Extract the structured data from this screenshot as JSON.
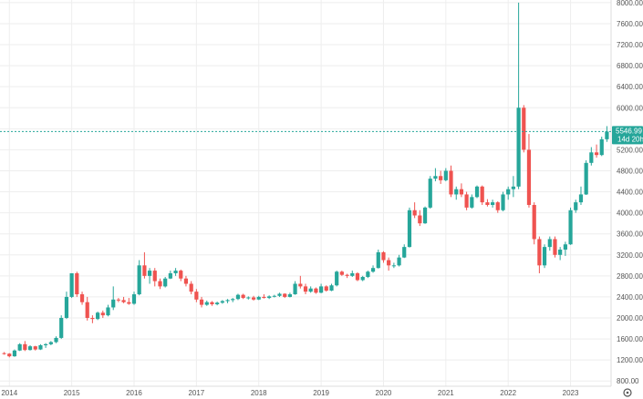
{
  "chart_data": {
    "type": "candlestick",
    "title": "",
    "xlabel": "",
    "ylabel": "",
    "ylim": [
      700,
      8050
    ],
    "xlim": [
      2013.85,
      2023.65
    ],
    "grid": true,
    "legend": "none",
    "colors": {
      "up": "#26a69a",
      "down": "#ef5350",
      "last_price_line": "#26a69a",
      "grid": "#eeeeee",
      "axis": "#dddddd"
    },
    "x_ticks": [
      {
        "t": 2014,
        "label": "2014"
      },
      {
        "t": 2015,
        "label": "2015"
      },
      {
        "t": 2016,
        "label": "2016"
      },
      {
        "t": 2017,
        "label": "2017"
      },
      {
        "t": 2018,
        "label": "2018"
      },
      {
        "t": 2019,
        "label": "2019"
      },
      {
        "t": 2020,
        "label": "2020"
      },
      {
        "t": 2021,
        "label": "2021"
      },
      {
        "t": 2022,
        "label": "2022"
      },
      {
        "t": 2023,
        "label": "2023"
      }
    ],
    "y_ticks": [
      {
        "v": 800,
        "label": "800.00"
      },
      {
        "v": 1200,
        "label": "1200.00"
      },
      {
        "v": 1600,
        "label": "1600.00"
      },
      {
        "v": 2000,
        "label": "2000.00"
      },
      {
        "v": 2400,
        "label": "2400.00"
      },
      {
        "v": 2800,
        "label": "2800.00"
      },
      {
        "v": 3200,
        "label": "3200.00"
      },
      {
        "v": 3600,
        "label": "3600.00"
      },
      {
        "v": 4000,
        "label": "4000.00"
      },
      {
        "v": 4400,
        "label": "4400.00"
      },
      {
        "v": 4800,
        "label": "4800.00"
      },
      {
        "v": 5200,
        "label": "5200.00"
      },
      {
        "v": 5600,
        "label": "5600.00"
      },
      {
        "v": 6000,
        "label": "6000.00"
      },
      {
        "v": 6400,
        "label": "6400.00"
      },
      {
        "v": 6800,
        "label": "6800.00"
      },
      {
        "v": 7200,
        "label": "7200.00"
      },
      {
        "v": 7600,
        "label": "7600.00"
      },
      {
        "v": 8000,
        "label": "8000.00"
      }
    ],
    "last_price": 5546.99,
    "last_price_label": "5546.99",
    "countdown_label": "14d 20h",
    "candles": [
      {
        "t": 2013.917,
        "o": 1330,
        "h": 1350,
        "l": 1300,
        "c": 1320
      },
      {
        "t": 2014.0,
        "o": 1320,
        "h": 1330,
        "l": 1250,
        "c": 1270
      },
      {
        "t": 2014.083,
        "o": 1270,
        "h": 1400,
        "l": 1260,
        "c": 1380
      },
      {
        "t": 2014.167,
        "o": 1380,
        "h": 1520,
        "l": 1370,
        "c": 1500
      },
      {
        "t": 2014.25,
        "o": 1500,
        "h": 1560,
        "l": 1370,
        "c": 1390
      },
      {
        "t": 2014.333,
        "o": 1390,
        "h": 1480,
        "l": 1380,
        "c": 1460
      },
      {
        "t": 2014.417,
        "o": 1460,
        "h": 1470,
        "l": 1380,
        "c": 1400
      },
      {
        "t": 2014.5,
        "o": 1400,
        "h": 1500,
        "l": 1390,
        "c": 1480
      },
      {
        "t": 2014.583,
        "o": 1480,
        "h": 1520,
        "l": 1430,
        "c": 1500
      },
      {
        "t": 2014.667,
        "o": 1500,
        "h": 1560,
        "l": 1480,
        "c": 1540
      },
      {
        "t": 2014.75,
        "o": 1540,
        "h": 1650,
        "l": 1520,
        "c": 1620
      },
      {
        "t": 2014.833,
        "o": 1620,
        "h": 2050,
        "l": 1600,
        "c": 2000
      },
      {
        "t": 2014.917,
        "o": 2000,
        "h": 2500,
        "l": 1980,
        "c": 2400
      },
      {
        "t": 2015.0,
        "o": 2400,
        "h": 2850,
        "l": 2380,
        "c": 2850
      },
      {
        "t": 2015.083,
        "o": 2850,
        "h": 2880,
        "l": 2400,
        "c": 2450
      },
      {
        "t": 2015.167,
        "o": 2450,
        "h": 2500,
        "l": 2250,
        "c": 2300
      },
      {
        "t": 2015.25,
        "o": 2300,
        "h": 2400,
        "l": 1950,
        "c": 2000
      },
      {
        "t": 2015.333,
        "o": 2000,
        "h": 2050,
        "l": 1900,
        "c": 1980
      },
      {
        "t": 2015.417,
        "o": 1980,
        "h": 2120,
        "l": 1960,
        "c": 2100
      },
      {
        "t": 2015.5,
        "o": 2100,
        "h": 2140,
        "l": 2000,
        "c": 2050
      },
      {
        "t": 2015.583,
        "o": 2050,
        "h": 2250,
        "l": 2030,
        "c": 2200
      },
      {
        "t": 2015.667,
        "o": 2200,
        "h": 2600,
        "l": 2150,
        "c": 2350
      },
      {
        "t": 2015.75,
        "o": 2350,
        "h": 2380,
        "l": 2300,
        "c": 2340
      },
      {
        "t": 2015.833,
        "o": 2340,
        "h": 2400,
        "l": 2280,
        "c": 2300
      },
      {
        "t": 2015.917,
        "o": 2300,
        "h": 2380,
        "l": 2250,
        "c": 2270
      },
      {
        "t": 2016.0,
        "o": 2270,
        "h": 2500,
        "l": 2250,
        "c": 2450
      },
      {
        "t": 2016.083,
        "o": 2450,
        "h": 3100,
        "l": 2430,
        "c": 3000
      },
      {
        "t": 2016.167,
        "o": 3000,
        "h": 3250,
        "l": 2750,
        "c": 2800
      },
      {
        "t": 2016.25,
        "o": 2800,
        "h": 2950,
        "l": 2650,
        "c": 2900
      },
      {
        "t": 2016.333,
        "o": 2900,
        "h": 2950,
        "l": 2600,
        "c": 2700
      },
      {
        "t": 2016.417,
        "o": 2700,
        "h": 2750,
        "l": 2550,
        "c": 2600
      },
      {
        "t": 2016.5,
        "o": 2600,
        "h": 2780,
        "l": 2580,
        "c": 2750
      },
      {
        "t": 2016.583,
        "o": 2750,
        "h": 2900,
        "l": 2740,
        "c": 2850
      },
      {
        "t": 2016.667,
        "o": 2850,
        "h": 2950,
        "l": 2800,
        "c": 2900
      },
      {
        "t": 2016.75,
        "o": 2900,
        "h": 2920,
        "l": 2700,
        "c": 2750
      },
      {
        "t": 2016.833,
        "o": 2750,
        "h": 2800,
        "l": 2600,
        "c": 2650
      },
      {
        "t": 2016.917,
        "o": 2650,
        "h": 2700,
        "l": 2450,
        "c": 2500
      },
      {
        "t": 2017.0,
        "o": 2500,
        "h": 2550,
        "l": 2300,
        "c": 2350
      },
      {
        "t": 2017.083,
        "o": 2350,
        "h": 2400,
        "l": 2200,
        "c": 2250
      },
      {
        "t": 2017.167,
        "o": 2250,
        "h": 2330,
        "l": 2230,
        "c": 2300
      },
      {
        "t": 2017.25,
        "o": 2300,
        "h": 2320,
        "l": 2230,
        "c": 2260
      },
      {
        "t": 2017.333,
        "o": 2260,
        "h": 2310,
        "l": 2240,
        "c": 2290
      },
      {
        "t": 2017.417,
        "o": 2290,
        "h": 2340,
        "l": 2270,
        "c": 2320
      },
      {
        "t": 2017.5,
        "o": 2320,
        "h": 2360,
        "l": 2280,
        "c": 2340
      },
      {
        "t": 2017.583,
        "o": 2340,
        "h": 2380,
        "l": 2300,
        "c": 2360
      },
      {
        "t": 2017.667,
        "o": 2360,
        "h": 2460,
        "l": 2340,
        "c": 2440
      },
      {
        "t": 2017.75,
        "o": 2440,
        "h": 2460,
        "l": 2360,
        "c": 2380
      },
      {
        "t": 2017.833,
        "o": 2380,
        "h": 2410,
        "l": 2350,
        "c": 2390
      },
      {
        "t": 2017.917,
        "o": 2390,
        "h": 2420,
        "l": 2330,
        "c": 2350
      },
      {
        "t": 2018.0,
        "o": 2350,
        "h": 2420,
        "l": 2340,
        "c": 2400
      },
      {
        "t": 2018.083,
        "o": 2400,
        "h": 2450,
        "l": 2370,
        "c": 2380
      },
      {
        "t": 2018.167,
        "o": 2380,
        "h": 2430,
        "l": 2360,
        "c": 2410
      },
      {
        "t": 2018.25,
        "o": 2410,
        "h": 2440,
        "l": 2390,
        "c": 2420
      },
      {
        "t": 2018.333,
        "o": 2420,
        "h": 2480,
        "l": 2400,
        "c": 2460
      },
      {
        "t": 2018.417,
        "o": 2460,
        "h": 2470,
        "l": 2380,
        "c": 2400
      },
      {
        "t": 2018.5,
        "o": 2400,
        "h": 2480,
        "l": 2390,
        "c": 2450
      },
      {
        "t": 2018.583,
        "o": 2450,
        "h": 2700,
        "l": 2440,
        "c": 2650
      },
      {
        "t": 2018.667,
        "o": 2650,
        "h": 2800,
        "l": 2560,
        "c": 2600
      },
      {
        "t": 2018.75,
        "o": 2600,
        "h": 2650,
        "l": 2450,
        "c": 2500
      },
      {
        "t": 2018.833,
        "o": 2500,
        "h": 2600,
        "l": 2480,
        "c": 2560
      },
      {
        "t": 2018.917,
        "o": 2560,
        "h": 2580,
        "l": 2460,
        "c": 2480
      },
      {
        "t": 2019.0,
        "o": 2480,
        "h": 2650,
        "l": 2470,
        "c": 2600
      },
      {
        "t": 2019.083,
        "o": 2600,
        "h": 2620,
        "l": 2500,
        "c": 2520
      },
      {
        "t": 2019.167,
        "o": 2520,
        "h": 2650,
        "l": 2510,
        "c": 2620
      },
      {
        "t": 2019.25,
        "o": 2620,
        "h": 2900,
        "l": 2600,
        "c": 2880
      },
      {
        "t": 2019.333,
        "o": 2880,
        "h": 2900,
        "l": 2800,
        "c": 2820
      },
      {
        "t": 2019.417,
        "o": 2820,
        "h": 2840,
        "l": 2760,
        "c": 2800
      },
      {
        "t": 2019.5,
        "o": 2800,
        "h": 2900,
        "l": 2780,
        "c": 2850
      },
      {
        "t": 2019.583,
        "o": 2850,
        "h": 2870,
        "l": 2700,
        "c": 2720
      },
      {
        "t": 2019.667,
        "o": 2720,
        "h": 2800,
        "l": 2700,
        "c": 2780
      },
      {
        "t": 2019.75,
        "o": 2780,
        "h": 2900,
        "l": 2760,
        "c": 2880
      },
      {
        "t": 2019.833,
        "o": 2880,
        "h": 3000,
        "l": 2860,
        "c": 2950
      },
      {
        "t": 2019.917,
        "o": 2950,
        "h": 3300,
        "l": 2940,
        "c": 3250
      },
      {
        "t": 2020.0,
        "o": 3250,
        "h": 3270,
        "l": 3050,
        "c": 3100
      },
      {
        "t": 2020.083,
        "o": 3100,
        "h": 3150,
        "l": 2900,
        "c": 3000
      },
      {
        "t": 2020.167,
        "o": 3000,
        "h": 3050,
        "l": 2950,
        "c": 3000
      },
      {
        "t": 2020.25,
        "o": 3000,
        "h": 3200,
        "l": 2980,
        "c": 3150
      },
      {
        "t": 2020.333,
        "o": 3150,
        "h": 3400,
        "l": 3140,
        "c": 3350
      },
      {
        "t": 2020.417,
        "o": 3350,
        "h": 4100,
        "l": 3340,
        "c": 4050
      },
      {
        "t": 2020.5,
        "o": 4050,
        "h": 4200,
        "l": 3900,
        "c": 3950
      },
      {
        "t": 2020.583,
        "o": 3950,
        "h": 4050,
        "l": 3750,
        "c": 3800
      },
      {
        "t": 2020.667,
        "o": 3800,
        "h": 4120,
        "l": 3790,
        "c": 4100
      },
      {
        "t": 2020.75,
        "o": 4100,
        "h": 4700,
        "l": 4080,
        "c": 4650
      },
      {
        "t": 2020.833,
        "o": 4650,
        "h": 4850,
        "l": 4600,
        "c": 4700
      },
      {
        "t": 2020.917,
        "o": 4700,
        "h": 4800,
        "l": 4550,
        "c": 4620
      },
      {
        "t": 2021.0,
        "o": 4620,
        "h": 4850,
        "l": 4600,
        "c": 4800
      },
      {
        "t": 2021.083,
        "o": 4800,
        "h": 4900,
        "l": 4300,
        "c": 4350
      },
      {
        "t": 2021.167,
        "o": 4350,
        "h": 4500,
        "l": 4250,
        "c": 4450
      },
      {
        "t": 2021.25,
        "o": 4450,
        "h": 4560,
        "l": 4300,
        "c": 4350
      },
      {
        "t": 2021.333,
        "o": 4350,
        "h": 4400,
        "l": 4050,
        "c": 4100
      },
      {
        "t": 2021.417,
        "o": 4100,
        "h": 4350,
        "l": 4080,
        "c": 4300
      },
      {
        "t": 2021.5,
        "o": 4300,
        "h": 4520,
        "l": 4280,
        "c": 4500
      },
      {
        "t": 2021.583,
        "o": 4500,
        "h": 4520,
        "l": 4150,
        "c": 4200
      },
      {
        "t": 2021.667,
        "o": 4200,
        "h": 4260,
        "l": 4120,
        "c": 4150
      },
      {
        "t": 2021.75,
        "o": 4150,
        "h": 4250,
        "l": 4100,
        "c": 4200
      },
      {
        "t": 2021.833,
        "o": 4200,
        "h": 4220,
        "l": 4000,
        "c": 4050
      },
      {
        "t": 2021.917,
        "o": 4050,
        "h": 4400,
        "l": 4030,
        "c": 4350
      },
      {
        "t": 2022.0,
        "o": 4350,
        "h": 4500,
        "l": 4250,
        "c": 4450
      },
      {
        "t": 2022.083,
        "o": 4450,
        "h": 4700,
        "l": 4300,
        "c": 4500
      },
      {
        "t": 2022.167,
        "o": 4500,
        "h": 8000,
        "l": 4450,
        "c": 6000
      },
      {
        "t": 2022.25,
        "o": 6000,
        "h": 6050,
        "l": 5150,
        "c": 5200
      },
      {
        "t": 2022.333,
        "o": 5200,
        "h": 5500,
        "l": 4100,
        "c": 4150
      },
      {
        "t": 2022.417,
        "o": 4150,
        "h": 4200,
        "l": 3400,
        "c": 3500
      },
      {
        "t": 2022.5,
        "o": 3500,
        "h": 3550,
        "l": 2850,
        "c": 3000
      },
      {
        "t": 2022.583,
        "o": 3000,
        "h": 3400,
        "l": 2950,
        "c": 3350
      },
      {
        "t": 2022.667,
        "o": 3350,
        "h": 3550,
        "l": 3280,
        "c": 3500
      },
      {
        "t": 2022.75,
        "o": 3500,
        "h": 3550,
        "l": 3150,
        "c": 3200
      },
      {
        "t": 2022.833,
        "o": 3200,
        "h": 3350,
        "l": 3100,
        "c": 3300
      },
      {
        "t": 2022.917,
        "o": 3300,
        "h": 3450,
        "l": 3180,
        "c": 3400
      },
      {
        "t": 2023.0,
        "o": 3400,
        "h": 4100,
        "l": 3390,
        "c": 4050
      },
      {
        "t": 2023.083,
        "o": 4050,
        "h": 4250,
        "l": 4000,
        "c": 4200
      },
      {
        "t": 2023.167,
        "o": 4200,
        "h": 4500,
        "l": 4150,
        "c": 4350
      },
      {
        "t": 2023.25,
        "o": 4350,
        "h": 5000,
        "l": 4340,
        "c": 4950
      },
      {
        "t": 2023.333,
        "o": 4950,
        "h": 5250,
        "l": 4900,
        "c": 5150
      },
      {
        "t": 2023.417,
        "o": 5150,
        "h": 5300,
        "l": 5050,
        "c": 5100
      },
      {
        "t": 2023.5,
        "o": 5100,
        "h": 5450,
        "l": 5080,
        "c": 5400
      },
      {
        "t": 2023.583,
        "o": 5400,
        "h": 5650,
        "l": 5350,
        "c": 5547
      }
    ]
  },
  "settings_icon": "gear-icon"
}
